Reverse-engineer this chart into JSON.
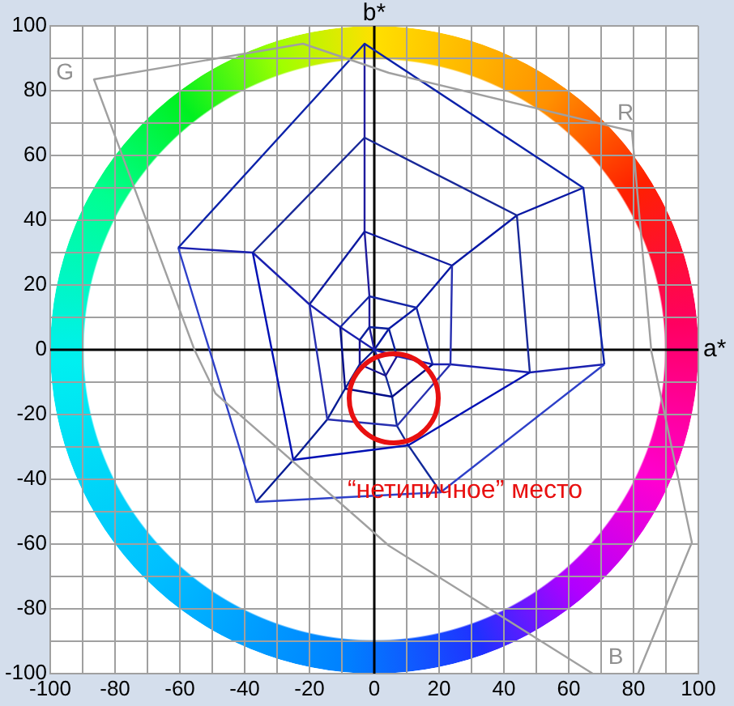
{
  "chart_data": {
    "type": "line",
    "xlabel": "a*",
    "ylabel": "b*",
    "xlim": [
      -100,
      100
    ],
    "ylim": [
      -100,
      100
    ],
    "xticks": [
      -100,
      {
        "value": -90,
        "label": null
      },
      -80,
      {
        "value": -70,
        "label": null
      },
      -60,
      {
        "value": -50,
        "label": null
      },
      -40,
      {
        "value": -30,
        "label": null
      },
      -20,
      {
        "value": -10,
        "label": null
      },
      0,
      {
        "value": 10,
        "label": null
      },
      20,
      {
        "value": 30,
        "label": null
      },
      40,
      {
        "value": 50,
        "label": null
      },
      60,
      {
        "value": 70,
        "label": null
      },
      80,
      {
        "value": 90,
        "label": null
      },
      100
    ],
    "yticks": [
      -100,
      {
        "value": -90,
        "label": null
      },
      -80,
      {
        "value": -70,
        "label": null
      },
      -60,
      {
        "value": -50,
        "label": null
      },
      -40,
      {
        "value": -30,
        "label": null
      },
      -20,
      {
        "value": -10,
        "label": null
      },
      0,
      {
        "value": 10,
        "label": null
      },
      20,
      {
        "value": 30,
        "label": null
      },
      40,
      {
        "value": 50,
        "label": null
      },
      60,
      {
        "value": 70,
        "label": null
      },
      80,
      {
        "value": 90,
        "label": null
      },
      100
    ],
    "grid": true,
    "legend": false,
    "marker": "none",
    "line_style": "solid",
    "series": [
      {
        "color": "#a0a0a0",
        "x": [
          67.4,
          4.5,
          -49,
          -55.5,
          -86.5,
          -22,
          4.5,
          79.5,
          85.5,
          98,
          81.4
        ],
        "values": [
          -100,
          -60.5,
          -13.5,
          0,
          83.5,
          94.5,
          85.5,
          67.5,
          -0.5,
          -59.5,
          -100
        ]
      },
      {
        "color": "#0a1e9c",
        "x": [
          -4.5,
          -1.5,
          4.5,
          7
        ],
        "values": [
          3,
          7,
          6.5,
          -2
        ]
      },
      {
        "color": "#1a1490",
        "x": [
          -4.5,
          -4.5,
          3.5,
          7
        ],
        "values": [
          3,
          -4.5,
          -8,
          -2
        ]
      },
      {
        "color": "#1424a6",
        "x": [
          -10.5,
          -1.5,
          13,
          18
        ],
        "values": [
          7,
          16.5,
          13,
          -4.5
        ]
      },
      {
        "color": "#000c88",
        "x": [
          -10.5,
          -9,
          5.5,
          18
        ],
        "values": [
          7,
          -12,
          -14.5,
          -4.5
        ]
      },
      {
        "color": "#0e1aa0",
        "x": [
          -20,
          -3,
          24
        ],
        "values": [
          14,
          36.5,
          26
        ]
      },
      {
        "color": "#2830b0",
        "x": [
          -20,
          -14.5,
          7,
          23.5,
          24
        ],
        "values": [
          14,
          -21.5,
          -23.5,
          -4.5,
          26
        ]
      },
      {
        "color": "#182898",
        "x": [
          -37.5,
          -3,
          44,
          48
        ],
        "values": [
          30,
          65.5,
          41.5,
          -7
        ]
      },
      {
        "color": "#0010b4",
        "x": [
          -37.5,
          -25,
          10.5,
          48
        ],
        "values": [
          30,
          -34,
          -29.5,
          -7
        ]
      },
      {
        "color": "#0c22aa",
        "x": [
          -60.5,
          -3,
          64.5,
          71
        ],
        "values": [
          31.5,
          94.5,
          50,
          -4.5
        ]
      },
      {
        "color": "#2e40c8",
        "x": [
          -60.5,
          -36.5,
          20.5,
          71
        ],
        "values": [
          31.5,
          -47,
          -44,
          -4.5
        ]
      },
      {
        "color": "#201c9e",
        "x": [
          0,
          -1.5,
          -1.5,
          -3,
          -3,
          -3
        ],
        "values": [
          0,
          7,
          16.5,
          36.5,
          65.5,
          94.5
        ]
      },
      {
        "color": "#0818a4",
        "x": [
          0,
          4.5,
          13,
          24,
          44,
          64.5
        ],
        "values": [
          0,
          6.5,
          13,
          26,
          41.5,
          50
        ]
      },
      {
        "color": "#1a20b0",
        "x": [
          -60.5,
          -37.5,
          -20,
          -10.5,
          -4.5,
          0,
          7,
          18,
          23.5,
          48,
          71
        ],
        "values": [
          31.5,
          30,
          14,
          7,
          3,
          0,
          -2,
          -4.5,
          -4.5,
          -7,
          -4.5
        ]
      },
      {
        "color": "#122a9a",
        "x": [
          0,
          3.5,
          5.5,
          7,
          10.5,
          20.5
        ],
        "values": [
          0,
          -8,
          -14.5,
          -23.5,
          -29.5,
          -44
        ]
      },
      {
        "color": "#061c94",
        "x": [
          0,
          -4.5,
          -9,
          -14.5,
          -25,
          -36.5
        ],
        "values": [
          0,
          -4.5,
          -12,
          -21.5,
          -34,
          -47
        ]
      }
    ],
    "annotations": [
      "G",
      "R",
      "B",
      "“нетипичное” место"
    ]
  }
}
